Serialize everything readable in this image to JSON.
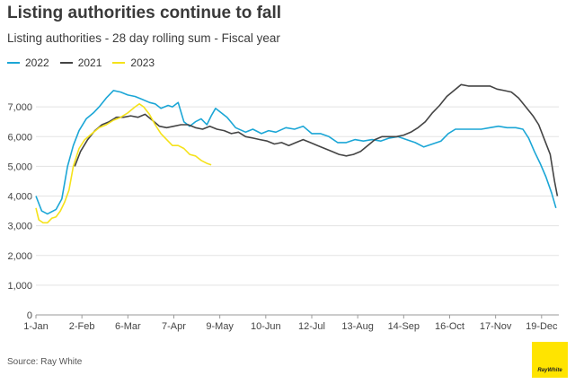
{
  "header": {
    "title": "Listing authorities continue to fall",
    "subtitle": "Listing authorities - 28 day rolling sum - Fiscal year"
  },
  "footer": {
    "source": "Source: Ray White",
    "logo_text": "RayWhite"
  },
  "chart_data": {
    "type": "line",
    "title": "Listing authorities continue to fall",
    "subtitle": "Listing authorities - 28 day rolling sum - Fiscal year",
    "xlabel": "",
    "ylabel": "",
    "x_unit": "day of year",
    "xlim": [
      1,
      365
    ],
    "ylim": [
      0,
      8000
    ],
    "y_ticks": [
      0,
      1000,
      2000,
      3000,
      4000,
      5000,
      6000,
      7000
    ],
    "y_tick_labels": [
      "0",
      "1,000",
      "2,000",
      "3,000",
      "4,000",
      "5,000",
      "6,000",
      "7,000"
    ],
    "x_ticks": [
      1,
      33,
      65,
      97,
      129,
      161,
      193,
      225,
      257,
      289,
      321,
      353
    ],
    "x_tick_labels": [
      "1-Jan",
      "2-Feb",
      "6-Mar",
      "7-Apr",
      "9-May",
      "10-Jun",
      "12-Jul",
      "13-Aug",
      "14-Sep",
      "16-Oct",
      "17-Nov",
      "19-Dec"
    ],
    "grid": "horizontal",
    "legend_position": "top-left",
    "series": [
      {
        "name": "2022",
        "color": "#1ba6d6",
        "points": [
          [
            1,
            4000
          ],
          [
            5,
            3500
          ],
          [
            9,
            3400
          ],
          [
            15,
            3550
          ],
          [
            19,
            3900
          ],
          [
            23,
            5000
          ],
          [
            27,
            5700
          ],
          [
            31,
            6200
          ],
          [
            36,
            6600
          ],
          [
            41,
            6800
          ],
          [
            45,
            7000
          ],
          [
            50,
            7300
          ],
          [
            55,
            7550
          ],
          [
            60,
            7500
          ],
          [
            65,
            7400
          ],
          [
            70,
            7350
          ],
          [
            75,
            7250
          ],
          [
            80,
            7150
          ],
          [
            84,
            7100
          ],
          [
            88,
            6950
          ],
          [
            93,
            7050
          ],
          [
            96,
            7000
          ],
          [
            100,
            7150
          ],
          [
            104,
            6500
          ],
          [
            108,
            6350
          ],
          [
            112,
            6500
          ],
          [
            116,
            6600
          ],
          [
            120,
            6400
          ],
          [
            123,
            6700
          ],
          [
            126,
            6950
          ],
          [
            130,
            6800
          ],
          [
            134,
            6650
          ],
          [
            140,
            6300
          ],
          [
            147,
            6150
          ],
          [
            152,
            6250
          ],
          [
            158,
            6100
          ],
          [
            163,
            6200
          ],
          [
            168,
            6150
          ],
          [
            175,
            6300
          ],
          [
            181,
            6250
          ],
          [
            187,
            6350
          ],
          [
            193,
            6100
          ],
          [
            199,
            6100
          ],
          [
            205,
            6000
          ],
          [
            211,
            5800
          ],
          [
            217,
            5800
          ],
          [
            223,
            5900
          ],
          [
            229,
            5850
          ],
          [
            235,
            5900
          ],
          [
            241,
            5850
          ],
          [
            247,
            5950
          ],
          [
            253,
            6000
          ],
          [
            259,
            5900
          ],
          [
            265,
            5800
          ],
          [
            271,
            5650
          ],
          [
            277,
            5750
          ],
          [
            283,
            5850
          ],
          [
            288,
            6100
          ],
          [
            293,
            6250
          ],
          [
            299,
            6250
          ],
          [
            305,
            6250
          ],
          [
            311,
            6250
          ],
          [
            317,
            6300
          ],
          [
            323,
            6350
          ],
          [
            329,
            6300
          ],
          [
            335,
            6300
          ],
          [
            340,
            6250
          ],
          [
            344,
            5950
          ],
          [
            348,
            5500
          ],
          [
            352,
            5100
          ],
          [
            356,
            4650
          ],
          [
            360,
            4100
          ],
          [
            363,
            3600
          ]
        ]
      },
      {
        "name": "2021",
        "color": "#444444",
        "points": [
          [
            28,
            5000
          ],
          [
            32,
            5500
          ],
          [
            37,
            5900
          ],
          [
            42,
            6200
          ],
          [
            47,
            6400
          ],
          [
            52,
            6500
          ],
          [
            57,
            6650
          ],
          [
            62,
            6650
          ],
          [
            67,
            6700
          ],
          [
            72,
            6650
          ],
          [
            77,
            6750
          ],
          [
            82,
            6550
          ],
          [
            87,
            6350
          ],
          [
            92,
            6300
          ],
          [
            97,
            6350
          ],
          [
            102,
            6400
          ],
          [
            107,
            6400
          ],
          [
            112,
            6300
          ],
          [
            117,
            6250
          ],
          [
            122,
            6350
          ],
          [
            127,
            6250
          ],
          [
            132,
            6200
          ],
          [
            137,
            6100
          ],
          [
            142,
            6150
          ],
          [
            147,
            6000
          ],
          [
            152,
            5950
          ],
          [
            157,
            5900
          ],
          [
            162,
            5850
          ],
          [
            167,
            5750
          ],
          [
            172,
            5800
          ],
          [
            177,
            5700
          ],
          [
            182,
            5800
          ],
          [
            187,
            5900
          ],
          [
            192,
            5800
          ],
          [
            197,
            5700
          ],
          [
            202,
            5600
          ],
          [
            207,
            5500
          ],
          [
            212,
            5400
          ],
          [
            217,
            5350
          ],
          [
            222,
            5400
          ],
          [
            227,
            5500
          ],
          [
            232,
            5700
          ],
          [
            237,
            5900
          ],
          [
            242,
            6000
          ],
          [
            247,
            6000
          ],
          [
            252,
            6000
          ],
          [
            257,
            6050
          ],
          [
            262,
            6150
          ],
          [
            267,
            6300
          ],
          [
            272,
            6500
          ],
          [
            277,
            6800
          ],
          [
            282,
            7050
          ],
          [
            287,
            7350
          ],
          [
            292,
            7550
          ],
          [
            297,
            7750
          ],
          [
            302,
            7700
          ],
          [
            307,
            7700
          ],
          [
            312,
            7700
          ],
          [
            317,
            7700
          ],
          [
            322,
            7600
          ],
          [
            327,
            7550
          ],
          [
            332,
            7500
          ],
          [
            337,
            7300
          ],
          [
            342,
            7000
          ],
          [
            347,
            6700
          ],
          [
            351,
            6400
          ],
          [
            355,
            5900
          ],
          [
            359,
            5400
          ],
          [
            362,
            4500
          ],
          [
            364,
            4000
          ]
        ]
      },
      {
        "name": "2023",
        "color": "#f5e21a",
        "points": [
          [
            1,
            3600
          ],
          [
            3,
            3200
          ],
          [
            6,
            3100
          ],
          [
            9,
            3100
          ],
          [
            12,
            3250
          ],
          [
            15,
            3300
          ],
          [
            18,
            3500
          ],
          [
            21,
            3800
          ],
          [
            24,
            4200
          ],
          [
            27,
            5000
          ],
          [
            31,
            5600
          ],
          [
            35,
            5900
          ],
          [
            40,
            6100
          ],
          [
            45,
            6300
          ],
          [
            50,
            6400
          ],
          [
            55,
            6550
          ],
          [
            60,
            6650
          ],
          [
            65,
            6800
          ],
          [
            70,
            7000
          ],
          [
            73,
            7100
          ],
          [
            76,
            7000
          ],
          [
            80,
            6750
          ],
          [
            84,
            6400
          ],
          [
            88,
            6100
          ],
          [
            92,
            5900
          ],
          [
            96,
            5700
          ],
          [
            100,
            5700
          ],
          [
            104,
            5600
          ],
          [
            108,
            5400
          ],
          [
            112,
            5350
          ],
          [
            116,
            5200
          ],
          [
            120,
            5100
          ],
          [
            123,
            5050
          ]
        ]
      }
    ]
  }
}
